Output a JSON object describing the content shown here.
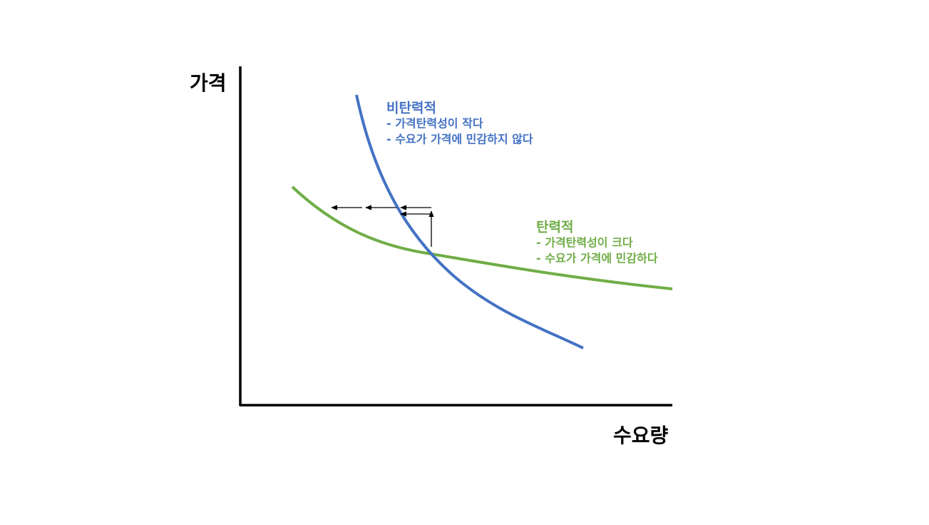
{
  "axes": {
    "y_label": "가격",
    "x_label": "수요량"
  },
  "curves": [
    {
      "name": "비탄력적",
      "notes": [
        "- 가격탄력성이 작다",
        "- 수요가 가격에 민감하지 않다"
      ]
    },
    {
      "name": "탄력적",
      "notes": [
        "- 가격탄력성이 크다",
        "- 수요가 가격에 민감하다"
      ]
    }
  ]
}
